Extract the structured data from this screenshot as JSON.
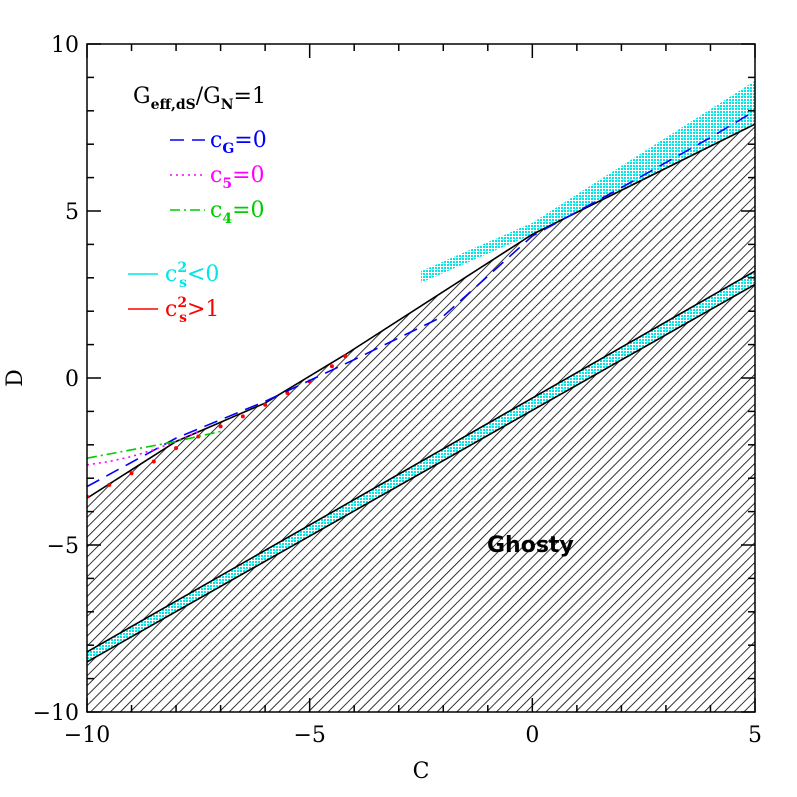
{
  "chart_data": {
    "type": "line",
    "xlabel": "C",
    "ylabel": "D",
    "xlim": [
      -10,
      5
    ],
    "ylim": [
      -10,
      10
    ],
    "xticks": [
      -10,
      -5,
      0,
      5
    ],
    "yticks": [
      -10,
      -5,
      0,
      5,
      10
    ],
    "xtick_labels": [
      "−10",
      "−5",
      "0",
      "5"
    ],
    "ytick_labels": [
      "−10",
      "−5",
      "0",
      "5",
      "10"
    ],
    "annotation": {
      "base": "G",
      "sub": "eff,dS",
      "mid": "/G",
      "sub2": "N",
      "tail": "=1"
    },
    "region_label": "Ghosty",
    "legend": [
      {
        "base": "c",
        "sub": "G",
        "tail": "=0",
        "color": "#0000ff",
        "dash": "14,8"
      },
      {
        "base": "c",
        "sub": "5",
        "tail": "=0",
        "color": "#ff00ff",
        "dash": "2,4"
      },
      {
        "base": "c",
        "sub": "4",
        "tail": "=0",
        "color": "#00cc00",
        "dash": "10,4,2,4"
      },
      {
        "base": "c",
        "sup": "2",
        "sub": "s",
        "tail": "<0",
        "color": "#00e5e5",
        "dash": ""
      },
      {
        "base": "c",
        "sup": "2",
        "sub": "s",
        "tail": ">1",
        "color": "#ff0000",
        "dash": ""
      }
    ],
    "series": [
      {
        "key": "cG",
        "x": [
          -10,
          -8,
          -6,
          -4,
          -2,
          0,
          2,
          4,
          5
        ],
        "y": [
          -3.25,
          -1.8,
          -0.7,
          0.55,
          1.85,
          4.25,
          5.7,
          7.2,
          8.0
        ]
      },
      {
        "key": "c5",
        "x": [
          -10,
          -9.5,
          -9,
          -8.5,
          -8,
          -7.5
        ],
        "y": [
          -2.6,
          -2.5,
          -2.35,
          -2.15,
          -1.9,
          -1.6
        ]
      },
      {
        "key": "c4",
        "x": [
          -10,
          -9,
          -8,
          -7.5,
          -7
        ],
        "y": [
          -2.4,
          -2.15,
          -1.9,
          -1.75,
          -1.6
        ]
      }
    ],
    "regions": {
      "upper_boundary": {
        "x": [
          -10,
          -8,
          -6,
          -4.2,
          0,
          5
        ],
        "y": [
          -3.6,
          -1.9,
          -0.75,
          0.7,
          4.3,
          7.6
        ]
      },
      "gap_upper": {
        "x": [
          -10,
          5
        ],
        "y": [
          -8.2,
          3.2
        ]
      },
      "gap_lower": {
        "x": [
          -10,
          5
        ],
        "y": [
          -8.5,
          2.8
        ]
      },
      "cyan_top_band": {
        "x": [
          -2.5,
          0,
          5
        ],
        "y": [
          3.2,
          4.65,
          8.9
        ]
      },
      "red_points": {
        "x": [
          -10,
          -9.5,
          -9,
          -8.5,
          -8,
          -7.5,
          -7,
          -6.5,
          -6,
          -5.5,
          -5,
          -4.5,
          -4.2
        ],
        "y": [
          -3.55,
          -3.2,
          -2.85,
          -2.5,
          -2.1,
          -1.75,
          -1.45,
          -1.15,
          -0.8,
          -0.45,
          -0.1,
          0.35,
          0.65
        ]
      }
    }
  }
}
